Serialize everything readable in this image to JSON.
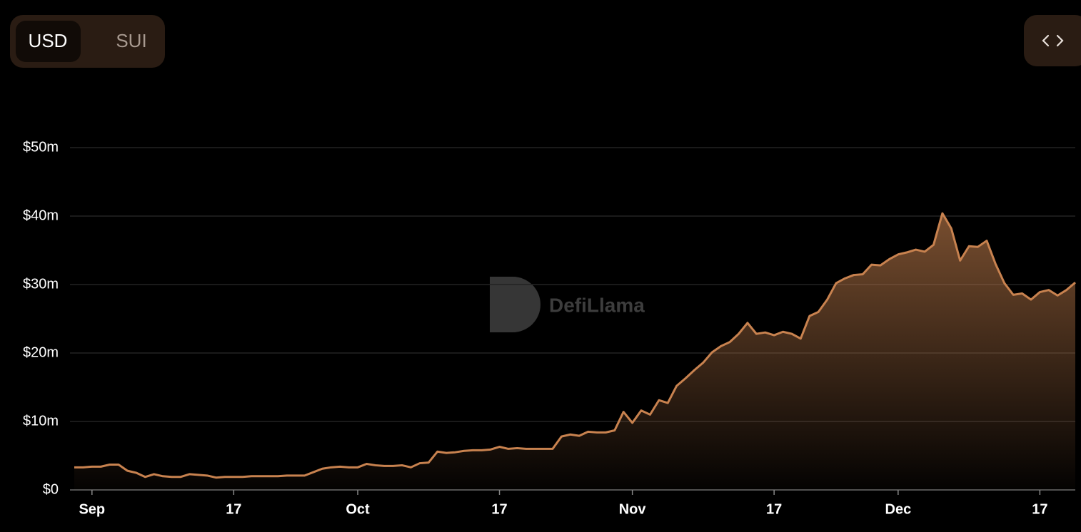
{
  "toggle": [
    "USD",
    "SUI"
  ],
  "watermark": "DefiLlama",
  "chart_data": {
    "type": "area",
    "x": [
      "Aug 30",
      "Aug 31",
      "Sep 1",
      "Sep 2",
      "Sep 3",
      "Sep 4",
      "Sep 5",
      "Sep 6",
      "Sep 7",
      "Sep 8",
      "Sep 9",
      "Sep 10",
      "Sep 11",
      "Sep 12",
      "Sep 13",
      "Sep 14",
      "Sep 15",
      "Sep 16",
      "Sep 17",
      "Sep 18",
      "Sep 19",
      "Sep 20",
      "Sep 21",
      "Sep 22",
      "Sep 23",
      "Sep 24",
      "Sep 25",
      "Sep 26",
      "Sep 27",
      "Sep 28",
      "Sep 29",
      "Sep 30",
      "Oct 1",
      "Oct 2",
      "Oct 3",
      "Oct 4",
      "Oct 5",
      "Oct 6",
      "Oct 7",
      "Oct 8",
      "Oct 9",
      "Oct 10",
      "Oct 11",
      "Oct 12",
      "Oct 13",
      "Oct 14",
      "Oct 15",
      "Oct 16",
      "Oct 17",
      "Oct 18",
      "Oct 19",
      "Oct 20",
      "Oct 21",
      "Oct 22",
      "Oct 23",
      "Oct 24",
      "Oct 25",
      "Oct 26",
      "Oct 27",
      "Oct 28",
      "Oct 29",
      "Oct 30",
      "Oct 31",
      "Nov 1",
      "Nov 2",
      "Nov 3",
      "Nov 4",
      "Nov 5",
      "Nov 6",
      "Nov 7",
      "Nov 8",
      "Nov 9",
      "Nov 10",
      "Nov 11",
      "Nov 12",
      "Nov 13",
      "Nov 14",
      "Nov 15",
      "Nov 16",
      "Nov 17",
      "Nov 18",
      "Nov 19",
      "Nov 20",
      "Nov 21",
      "Nov 22",
      "Nov 23",
      "Nov 24",
      "Nov 25",
      "Nov 26",
      "Nov 27",
      "Nov 28",
      "Nov 29",
      "Nov 30",
      "Dec 1",
      "Dec 2",
      "Dec 3",
      "Dec 4",
      "Dec 5",
      "Dec 6",
      "Dec 7",
      "Dec 8",
      "Dec 9",
      "Dec 10",
      "Dec 11",
      "Dec 12",
      "Dec 13",
      "Dec 14",
      "Dec 15",
      "Dec 16",
      "Dec 17",
      "Dec 18",
      "Dec 19",
      "Dec 20",
      "Dec 21"
    ],
    "series": [
      {
        "color": "#c8824f",
        "values": [
          3.3,
          3.3,
          3.4,
          3.4,
          3.7,
          3.7,
          2.8,
          2.5,
          1.9,
          2.3,
          2.0,
          1.9,
          1.9,
          2.3,
          2.2,
          2.1,
          1.8,
          1.9,
          1.9,
          1.9,
          2.0,
          2.0,
          2.0,
          2.0,
          2.1,
          2.1,
          2.1,
          2.6,
          3.1,
          3.3,
          3.4,
          3.3,
          3.3,
          3.8,
          3.6,
          3.5,
          3.5,
          3.6,
          3.3,
          3.9,
          4.0,
          5.6,
          5.4,
          5.5,
          5.7,
          5.8,
          5.8,
          5.9,
          6.3,
          6.0,
          6.1,
          6.0,
          6.0,
          6.0,
          6.0,
          7.8,
          8.1,
          7.9,
          8.5,
          8.4,
          8.4,
          8.7,
          11.4,
          9.8,
          11.6,
          11.0,
          13.1,
          12.7,
          15.2,
          16.3,
          17.5,
          18.6,
          20.1,
          21.0,
          21.6,
          22.8,
          24.4,
          22.8,
          23.0,
          22.6,
          23.1,
          22.8,
          22.1,
          25.4,
          26.0,
          27.8,
          30.2,
          30.9,
          31.4,
          31.5,
          32.9,
          32.8,
          33.7,
          34.4,
          34.7,
          35.1,
          34.8,
          35.8,
          40.4,
          38.2,
          33.5,
          35.6,
          35.5,
          36.4,
          33.0,
          30.2,
          28.5,
          28.7,
          27.8,
          28.9,
          29.2,
          28.4,
          29.2,
          30.3
        ]
      }
    ],
    "ylim": [
      0,
      50
    ],
    "yticks": [
      {
        "value": 0,
        "label": "$0"
      },
      {
        "value": 10,
        "label": "$10m"
      },
      {
        "value": 20,
        "label": "$20m"
      },
      {
        "value": 30,
        "label": "$30m"
      },
      {
        "value": 40,
        "label": "$40m"
      },
      {
        "value": 50,
        "label": "$50m"
      }
    ],
    "xticks": [
      {
        "value": "Sep 1",
        "label": "Sep"
      },
      {
        "value": "Sep 17",
        "label": "17"
      },
      {
        "value": "Oct 1",
        "label": "Oct"
      },
      {
        "value": "Oct 17",
        "label": "17"
      },
      {
        "value": "Nov 1",
        "label": "Nov"
      },
      {
        "value": "Nov 17",
        "label": "17"
      },
      {
        "value": "Dec 1",
        "label": "Dec"
      },
      {
        "value": "Dec 17",
        "label": "17"
      }
    ],
    "grid": true
  }
}
